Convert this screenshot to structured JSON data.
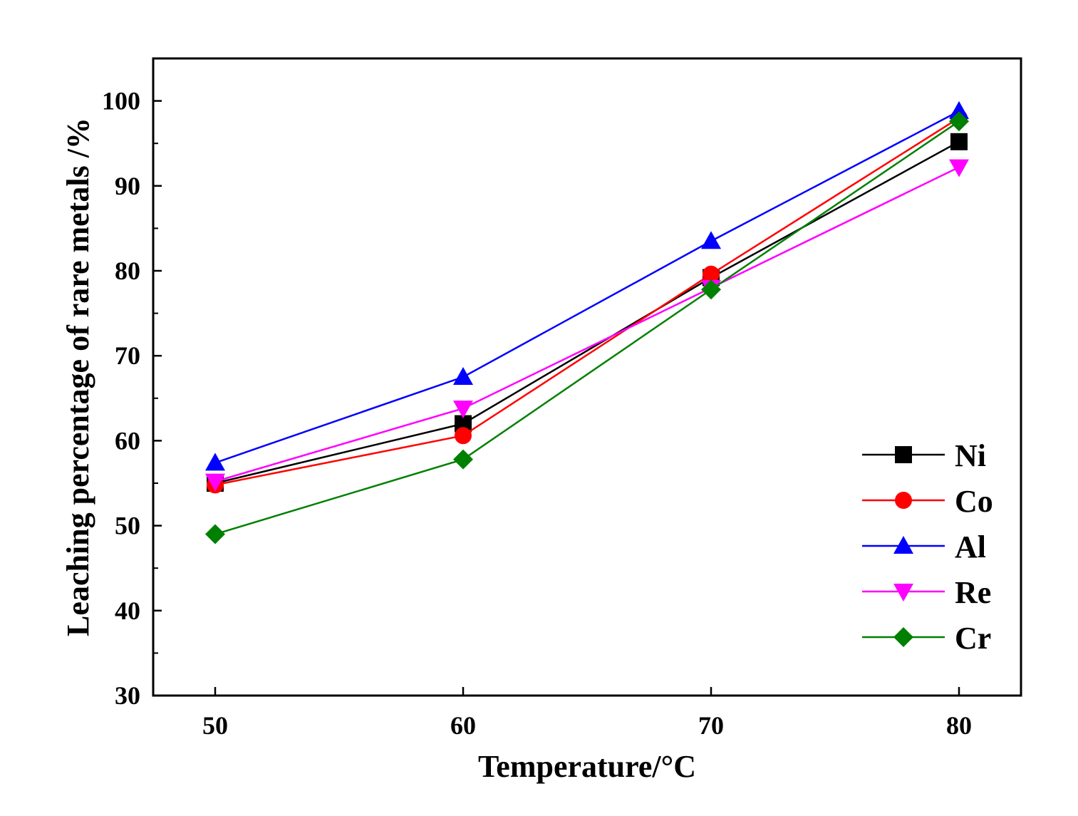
{
  "chart_data": {
    "type": "line",
    "x": [
      50,
      60,
      70,
      80
    ],
    "xlabel": "Temperature/°C",
    "ylabel": "Leaching percentage of rare metals /%",
    "xlim": [
      47.5,
      82.5
    ],
    "ylim": [
      30,
      105
    ],
    "xticks": [
      50,
      60,
      70,
      80
    ],
    "yticks": [
      30,
      40,
      50,
      60,
      70,
      80,
      90,
      100
    ],
    "legend_position": "bottom-right",
    "series": [
      {
        "name": "Ni",
        "color": "#000000",
        "marker": "square",
        "values": [
          55.0,
          62.0,
          79.2,
          95.2
        ]
      },
      {
        "name": "Co",
        "color": "#ff0000",
        "marker": "circle",
        "values": [
          54.8,
          60.6,
          79.6,
          98.0
        ]
      },
      {
        "name": "Al",
        "color": "#0000ff",
        "marker": "triangle-up",
        "values": [
          57.4,
          67.5,
          83.5,
          98.8
        ]
      },
      {
        "name": "Re",
        "color": "#ff00ff",
        "marker": "triangle-down",
        "values": [
          55.2,
          63.8,
          78.0,
          92.2
        ]
      },
      {
        "name": "Cr",
        "color": "#008000",
        "marker": "diamond",
        "values": [
          49.0,
          57.8,
          77.8,
          97.6
        ]
      }
    ]
  }
}
